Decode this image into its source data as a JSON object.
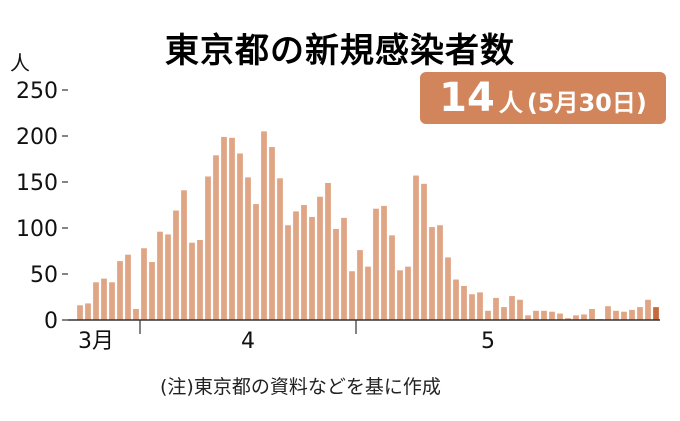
{
  "chart_data": {
    "type": "bar",
    "title": "東京都の新規感染者数",
    "y_unit": "人",
    "ylim": [
      0,
      250
    ],
    "yticks": [
      0,
      50,
      100,
      150,
      200,
      250
    ],
    "x_ticks": [
      {
        "label": "3月",
        "index": 3
      },
      {
        "label": "4",
        "index": 22
      },
      {
        "label": "5",
        "index": 52
      }
    ],
    "annotation": {
      "value": "14",
      "unit": "人",
      "date": "(5月30日)"
    },
    "source_note": "(注)東京都の資料などを基に作成",
    "bar_color": "#e0a585",
    "last_bar_color": "#c46a3e",
    "values": [
      0,
      16,
      18,
      41,
      45,
      41,
      64,
      71,
      12,
      78,
      63,
      96,
      93,
      119,
      141,
      84,
      87,
      156,
      179,
      199,
      198,
      181,
      155,
      126,
      205,
      188,
      154,
      103,
      118,
      125,
      112,
      134,
      149,
      99,
      111,
      53,
      76,
      58,
      121,
      124,
      92,
      54,
      58,
      157,
      148,
      101,
      103,
      68,
      44,
      37,
      28,
      30,
      10,
      24,
      14,
      26,
      22,
      5,
      10,
      10,
      9,
      7,
      2,
      5,
      6,
      12,
      1,
      15,
      10,
      9,
      11,
      14,
      22,
      14
    ]
  }
}
